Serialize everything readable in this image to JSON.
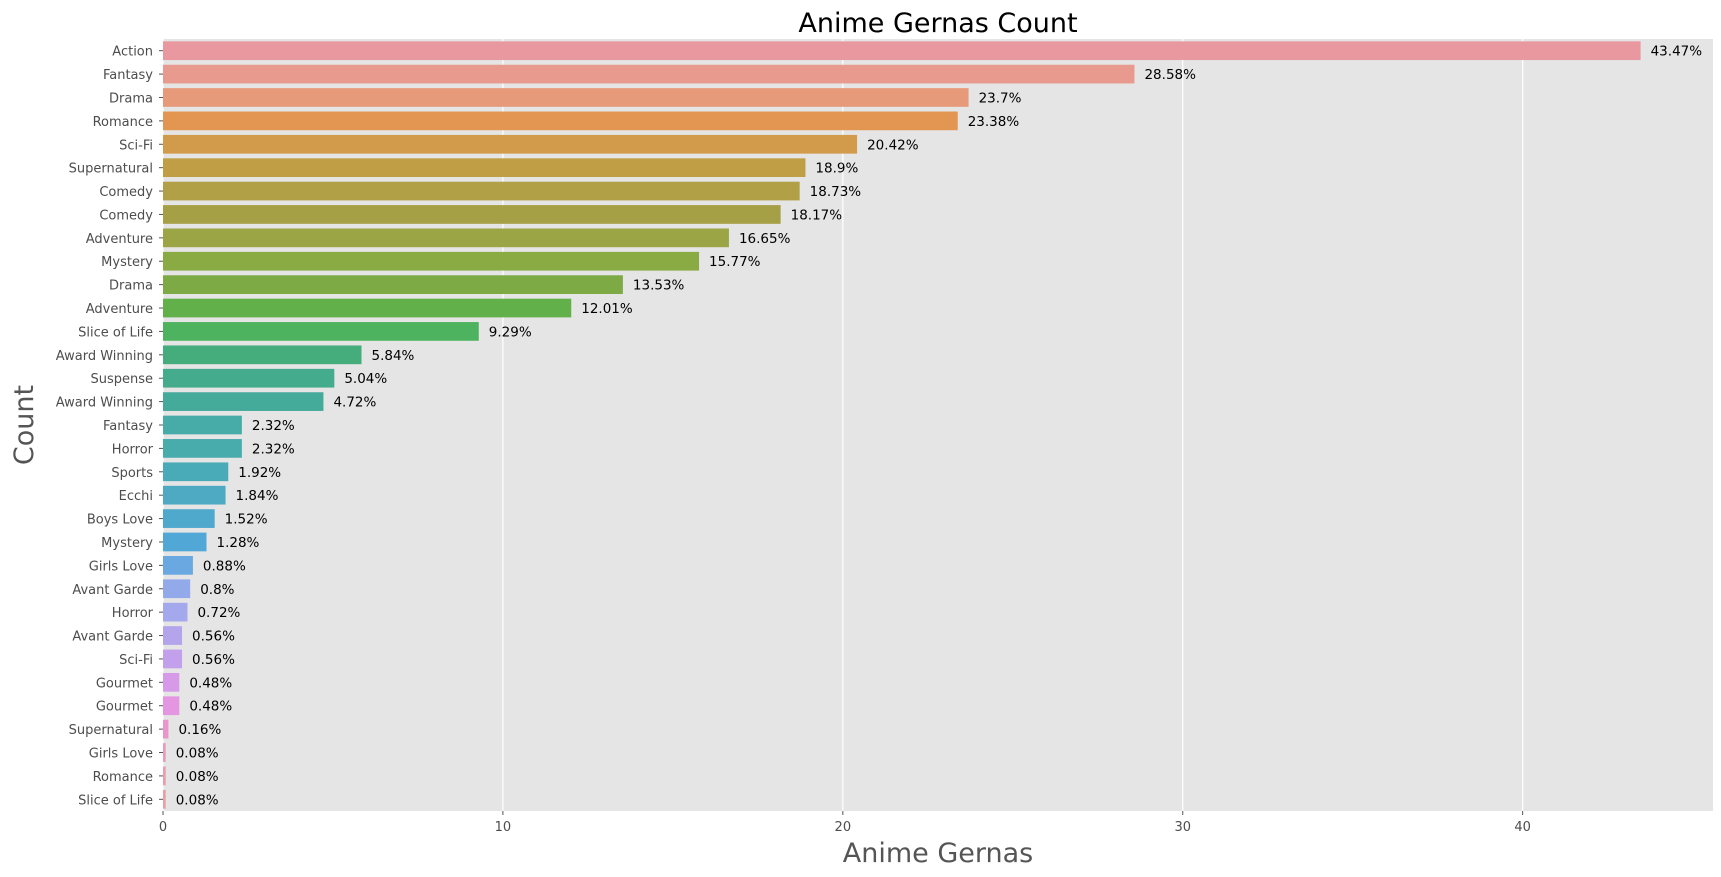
{
  "chart_data": {
    "type": "bar",
    "orientation": "horizontal",
    "title": "Anime Gernas Count",
    "xlabel": "Anime Gernas",
    "ylabel": "Count",
    "xlim": [
      0,
      45.6
    ],
    "x_ticks": [
      0,
      10,
      20,
      30,
      40
    ],
    "grid": true,
    "categories": [
      "Action",
      "Fantasy",
      "Drama",
      "Romance",
      "Sci-Fi",
      "Supernatural",
      "Comedy",
      "Comedy",
      "Adventure",
      "Mystery",
      "Drama",
      "Adventure",
      "Slice of Life",
      "Award Winning",
      "Suspense",
      "Award Winning",
      "Fantasy",
      "Horror",
      "Sports",
      "Ecchi",
      "Boys Love",
      "Mystery",
      "Girls Love",
      "Avant Garde",
      "Horror",
      "Avant Garde",
      "Sci-Fi",
      "Gourmet",
      "Gourmet",
      "Supernatural",
      "Girls Love",
      "Romance",
      "Slice of Life"
    ],
    "values": [
      43.47,
      28.58,
      23.7,
      23.38,
      20.42,
      18.9,
      18.73,
      18.17,
      16.65,
      15.77,
      13.53,
      12.01,
      9.29,
      5.84,
      5.04,
      4.72,
      2.32,
      2.32,
      1.92,
      1.84,
      1.52,
      1.28,
      0.88,
      0.8,
      0.72,
      0.56,
      0.56,
      0.48,
      0.48,
      0.16,
      0.08,
      0.08,
      0.08
    ],
    "data_labels": [
      "43.47%",
      "28.58%",
      "23.7%",
      "23.38%",
      "20.42%",
      "18.9%",
      "18.73%",
      "18.17%",
      "16.65%",
      "15.77%",
      "13.53%",
      "12.01%",
      "9.29%",
      "5.84%",
      "5.04%",
      "4.72%",
      "2.32%",
      "2.32%",
      "1.92%",
      "1.84%",
      "1.52%",
      "1.28%",
      "0.88%",
      "0.8%",
      "0.72%",
      "0.56%",
      "0.56%",
      "0.48%",
      "0.48%",
      "0.16%",
      "0.08%",
      "0.08%",
      "0.08%"
    ],
    "colors": [
      "#ea98a0",
      "#e99a8f",
      "#e79a7a",
      "#e39652",
      "#d29a4b",
      "#bf9e45",
      "#b1a045",
      "#a5a045",
      "#9ba545",
      "#8aaa44",
      "#7daa45",
      "#61b049",
      "#4db35e",
      "#45ad7c",
      "#45ab8d",
      "#44aa9a",
      "#47aba7",
      "#48abac",
      "#49abb7",
      "#4daac2",
      "#4fa9cc",
      "#51a8d6",
      "#69a8e0",
      "#92aaea",
      "#a4a8ec",
      "#b3a4ec",
      "#c3a0eb",
      "#d69ae8",
      "#e596e1",
      "#ea96cd",
      "#e99bba",
      "#e99dad",
      "#e9a0a5"
    ],
    "plot_background": "#e5e5e5"
  }
}
